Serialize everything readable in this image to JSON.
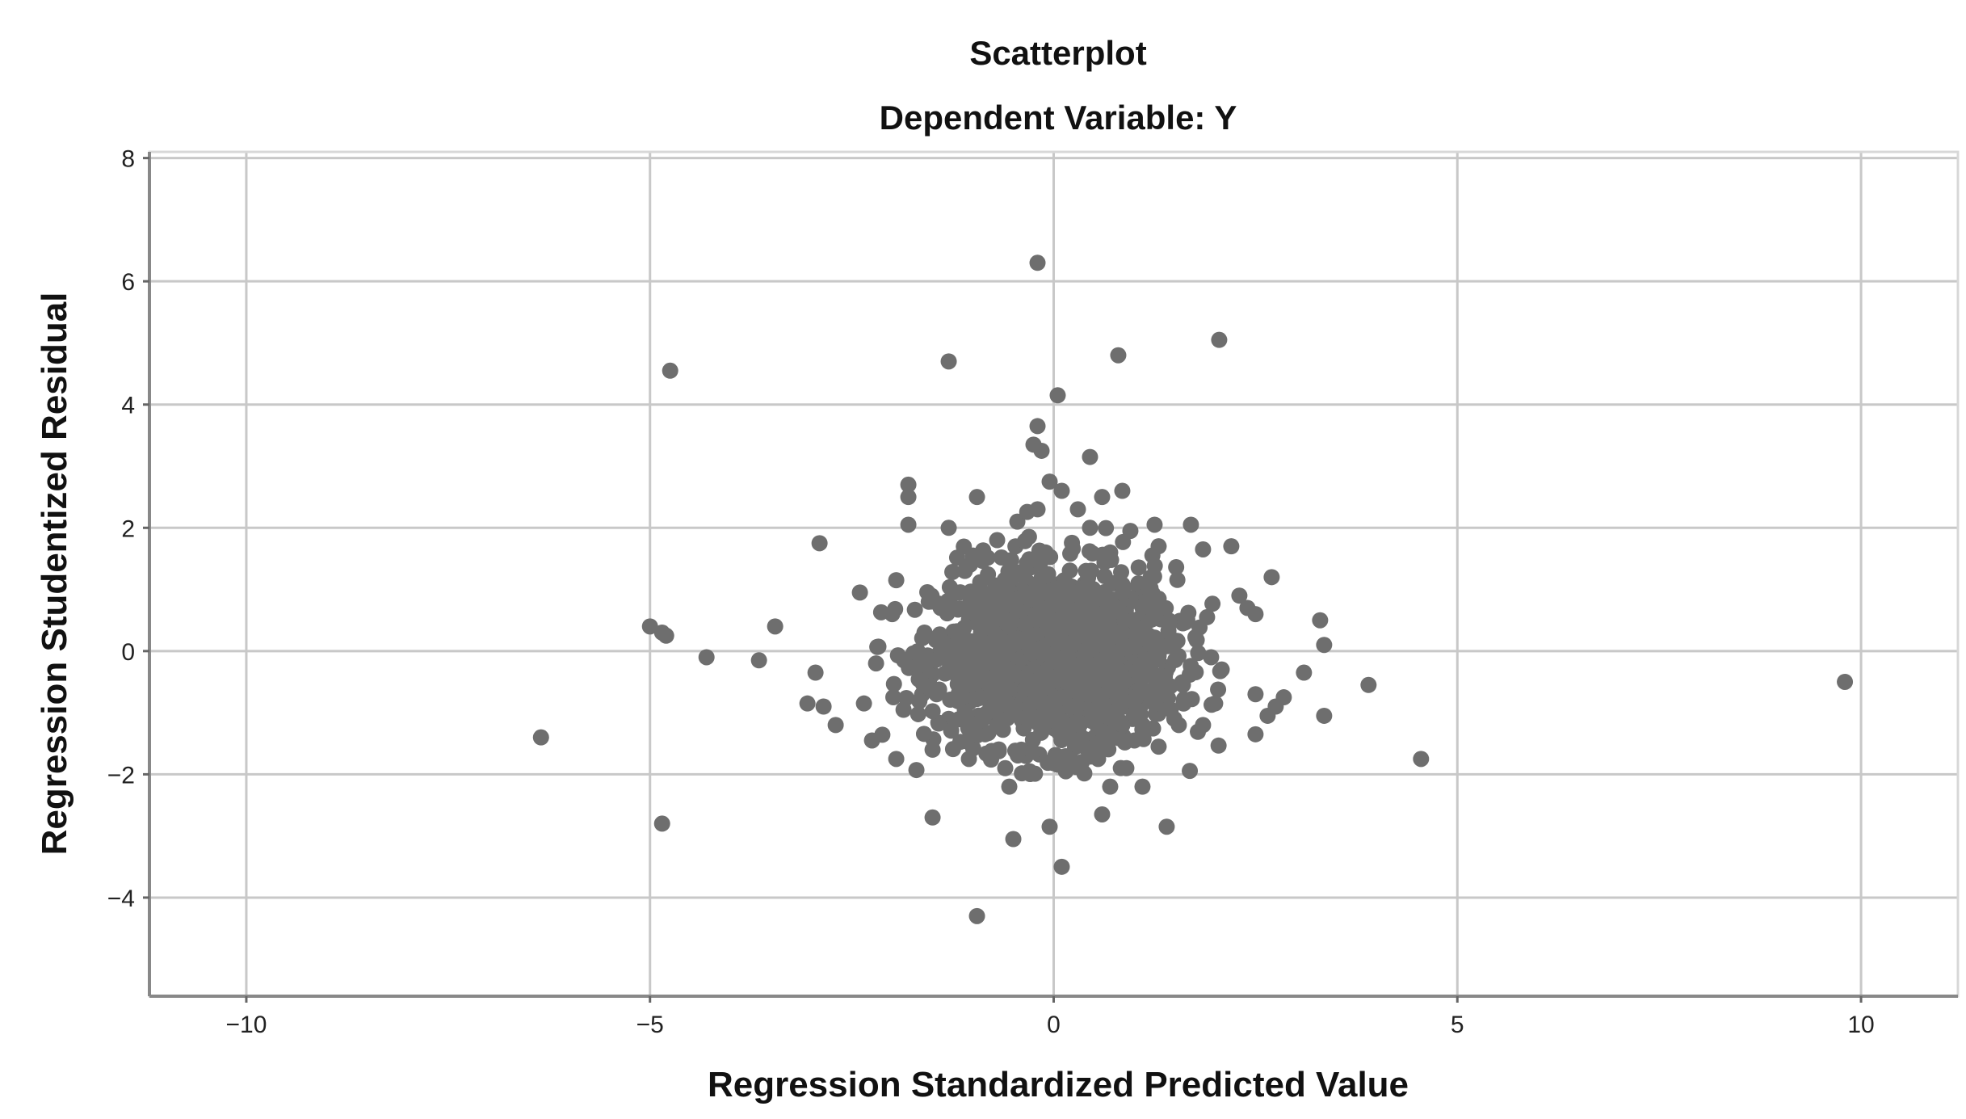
{
  "chart_data": {
    "type": "scatter",
    "title": "Scatterplot",
    "subtitle": "Dependent Variable: Y",
    "xlabel": "Regression Standardized Predicted Value",
    "ylabel": "Regression Studentized Residual",
    "xlim": [
      -11.2,
      11.2
    ],
    "ylim": [
      -5.6,
      8.1
    ],
    "x_ticks": [
      -10,
      -5,
      0,
      5,
      10
    ],
    "x_tick_labels": [
      "−10",
      "−5",
      "0",
      "5",
      "10"
    ],
    "y_ticks": [
      -4,
      -2,
      0,
      2,
      4,
      6,
      8
    ],
    "y_tick_labels": [
      "−4",
      "−2",
      "0",
      "2",
      "4",
      "6",
      "8"
    ],
    "grid": true,
    "marker_color": "#6e6e6e",
    "grid_color": "#c8c8c8",
    "points": [
      [
        -0.2,
        6.3
      ],
      [
        2.05,
        5.05
      ],
      [
        -4.75,
        4.55
      ],
      [
        -1.3,
        4.7
      ],
      [
        0.8,
        4.8
      ],
      [
        0.05,
        4.15
      ],
      [
        -0.2,
        3.65
      ],
      [
        -0.25,
        3.35
      ],
      [
        -0.15,
        3.25
      ],
      [
        0.45,
        3.15
      ],
      [
        -1.8,
        2.7
      ],
      [
        -1.8,
        2.5
      ],
      [
        -0.95,
        2.5
      ],
      [
        0.85,
        2.6
      ],
      [
        0.6,
        2.5
      ],
      [
        -2.9,
        1.75
      ],
      [
        -1.8,
        2.05
      ],
      [
        -1.3,
        2.0
      ],
      [
        1.25,
        2.05
      ],
      [
        1.7,
        2.05
      ],
      [
        0.95,
        1.95
      ],
      [
        1.3,
        1.7
      ],
      [
        1.85,
        1.65
      ],
      [
        2.2,
        1.7
      ],
      [
        2.7,
        1.2
      ],
      [
        -2.4,
        0.95
      ],
      [
        -1.95,
        1.15
      ],
      [
        2.3,
        0.9
      ],
      [
        2.4,
        0.7
      ],
      [
        2.5,
        0.6
      ],
      [
        3.3,
        0.5
      ],
      [
        3.35,
        0.1
      ],
      [
        3.1,
        -0.35
      ],
      [
        -5.0,
        0.4
      ],
      [
        -4.85,
        0.3
      ],
      [
        -4.8,
        0.25
      ],
      [
        -3.45,
        0.4
      ],
      [
        -4.3,
        -0.1
      ],
      [
        -3.65,
        -0.15
      ],
      [
        -2.95,
        -0.35
      ],
      [
        -3.05,
        -0.85
      ],
      [
        -2.85,
        -0.9
      ],
      [
        -2.7,
        -1.2
      ],
      [
        -2.35,
        -0.85
      ],
      [
        -2.25,
        -1.45
      ],
      [
        2.5,
        -0.7
      ],
      [
        2.85,
        -0.75
      ],
      [
        2.75,
        -0.9
      ],
      [
        2.65,
        -1.05
      ],
      [
        3.35,
        -1.05
      ],
      [
        3.9,
        -0.55
      ],
      [
        9.8,
        -0.5
      ],
      [
        -6.35,
        -1.4
      ],
      [
        4.55,
        -1.75
      ],
      [
        2.5,
        -1.35
      ],
      [
        1.3,
        -1.55
      ],
      [
        1.85,
        -1.2
      ],
      [
        -1.95,
        -1.75
      ],
      [
        -1.5,
        -1.6
      ],
      [
        -1.05,
        -1.75
      ],
      [
        -0.6,
        -1.9
      ],
      [
        -0.55,
        -2.2
      ],
      [
        0.35,
        -1.8
      ],
      [
        0.55,
        -1.75
      ],
      [
        0.7,
        -2.2
      ],
      [
        1.1,
        -2.2
      ],
      [
        -4.85,
        -2.8
      ],
      [
        -1.5,
        -2.7
      ],
      [
        -0.5,
        -3.05
      ],
      [
        -0.05,
        -2.85
      ],
      [
        0.6,
        -2.65
      ],
      [
        1.4,
        -2.85
      ],
      [
        0.1,
        -3.5
      ],
      [
        -0.95,
        -4.3
      ],
      [
        0.9,
        -1.9
      ],
      [
        -0.3,
        -1.95
      ],
      [
        0.15,
        -1.95
      ],
      [
        1.15,
        -0.7
      ],
      [
        1.45,
        -0.95
      ],
      [
        1.95,
        -0.1
      ],
      [
        1.9,
        0.55
      ],
      [
        2.0,
        -0.85
      ],
      [
        -2.0,
        0.6
      ],
      [
        -2.2,
        -0.2
      ],
      [
        -1.6,
        0.3
      ],
      [
        -1.4,
        0.7
      ],
      [
        -1.45,
        -0.7
      ],
      [
        -1.3,
        -1.1
      ],
      [
        -1.1,
        1.3
      ],
      [
        -1.0,
        1.55
      ],
      [
        -0.7,
        1.8
      ],
      [
        -0.45,
        2.1
      ],
      [
        -0.2,
        2.3
      ],
      [
        0.1,
        2.6
      ],
      [
        0.3,
        2.3
      ],
      [
        -0.05,
        2.75
      ],
      [
        0.45,
        2.0
      ],
      [
        0.7,
        1.6
      ],
      [
        1.05,
        1.1
      ],
      [
        1.3,
        0.85
      ],
      [
        1.6,
        0.45
      ],
      [
        1.7,
        -0.35
      ],
      [
        1.55,
        -1.2
      ],
      [
        1.0,
        -1.45
      ],
      [
        0.2,
        -1.7
      ],
      [
        -0.4,
        -1.6
      ],
      [
        -0.85,
        -1.35
      ],
      [
        -1.2,
        -0.8
      ],
      [
        -1.6,
        -0.25
      ],
      [
        -1.25,
        0.1
      ],
      [
        -0.85,
        0.7
      ],
      [
        -0.5,
        1.25
      ],
      [
        -0.1,
        1.6
      ],
      [
        0.4,
        1.3
      ],
      [
        0.8,
        0.8
      ],
      [
        1.1,
        0.25
      ],
      [
        1.0,
        -0.5
      ],
      [
        0.6,
        -1.0
      ],
      [
        0.0,
        -1.25
      ],
      [
        -0.6,
        -1.0
      ],
      [
        -0.95,
        -0.4
      ],
      [
        -0.9,
        0.3
      ],
      [
        -0.5,
        0.85
      ],
      [
        0.0,
        1.05
      ],
      [
        0.55,
        0.6
      ],
      [
        0.65,
        -0.15
      ],
      [
        0.3,
        -0.75
      ],
      [
        -0.25,
        -0.8
      ],
      [
        -0.6,
        -0.2
      ],
      [
        -0.4,
        0.35
      ],
      [
        0.1,
        0.55
      ],
      [
        0.35,
        0.05
      ],
      [
        0.0,
        -0.35
      ],
      [
        -0.25,
        0.0
      ],
      [
        0.2,
        -0.2
      ]
    ]
  }
}
